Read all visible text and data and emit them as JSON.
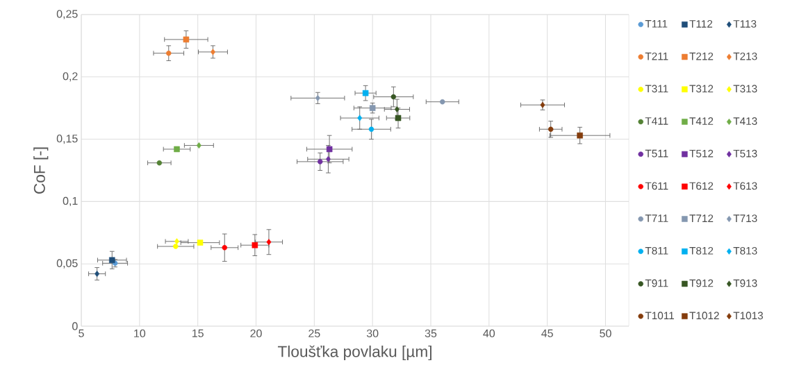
{
  "chart_data": {
    "type": "scatter",
    "xlabel": "Tloušťka povlaku [µm]",
    "ylabel": "CoF [-]",
    "xlim": [
      5,
      52
    ],
    "xticks": [
      5,
      10,
      15,
      20,
      25,
      30,
      35,
      40,
      45,
      50
    ],
    "ylim": [
      0,
      0.25
    ],
    "yticks": [
      0,
      {
        "value": 0.05,
        "label": "0,05"
      },
      {
        "value": 0.1,
        "label": "0,1"
      },
      {
        "value": 0.15,
        "label": "0,15"
      },
      {
        "value": 0.2,
        "label": "0,2"
      },
      {
        "value": 0.25,
        "label": "0,25"
      }
    ],
    "grid": true,
    "legend": "right",
    "series": [
      {
        "name": "T111",
        "color": "#5b9bd5",
        "marker": "circle",
        "x": [
          7.9
        ],
        "values": [
          0.0505
        ],
        "xerrors": [
          1.07
        ],
        "errors": [
          0.003
        ]
      },
      {
        "name": "T112",
        "color": "#1f4e79",
        "marker": "square",
        "x": [
          7.64
        ],
        "values": [
          0.053
        ],
        "xerrors": [
          1.24
        ],
        "errors": [
          0.007
        ]
      },
      {
        "name": "T113",
        "color": "#1f4e79",
        "marker": "diamond",
        "x": [
          6.35
        ],
        "values": [
          0.042
        ],
        "xerrors": [
          0.72
        ],
        "errors": [
          0.005
        ]
      },
      {
        "name": "T211",
        "color": "#ed7d31",
        "marker": "circle",
        "x": [
          12.5
        ],
        "values": [
          0.219
        ],
        "xerrors": [
          1.3
        ],
        "errors": [
          0.006
        ]
      },
      {
        "name": "T212",
        "color": "#ed7d31",
        "marker": "square",
        "x": [
          14.0
        ],
        "values": [
          0.23
        ],
        "xerrors": [
          1.86
        ],
        "errors": [
          0.007
        ]
      },
      {
        "name": "T213",
        "color": "#ed7d31",
        "marker": "diamond",
        "x": [
          16.3
        ],
        "values": [
          0.22
        ],
        "xerrors": [
          1.25
        ],
        "errors": [
          0.005
        ]
      },
      {
        "name": "T311",
        "color": "#ffff00",
        "marker": "circle",
        "x": [
          13.1
        ],
        "values": [
          0.064
        ],
        "xerrors": [
          1.56
        ]
      },
      {
        "name": "T312",
        "color": "#ffff00",
        "marker": "square",
        "x": [
          15.2
        ],
        "values": [
          0.067
        ],
        "xerrors": [
          1.66
        ]
      },
      {
        "name": "T313",
        "color": "#ffff00",
        "marker": "diamond",
        "x": [
          13.2
        ],
        "values": [
          0.068
        ],
        "xerrors": [
          0.98
        ]
      },
      {
        "name": "T411",
        "color": "#548235",
        "marker": "circle",
        "x": [
          11.7
        ],
        "values": [
          0.131
        ],
        "xerrors": [
          1.0
        ]
      },
      {
        "name": "T412",
        "color": "#70ad47",
        "marker": "square",
        "x": [
          13.2
        ],
        "values": [
          0.142
        ],
        "xerrors": [
          1.15
        ]
      },
      {
        "name": "T413",
        "color": "#70ad47",
        "marker": "diamond",
        "x": [
          15.1
        ],
        "values": [
          0.145
        ],
        "xerrors": [
          1.25
        ]
      },
      {
        "name": "T511",
        "color": "#7030a0",
        "marker": "circle",
        "x": [
          25.5
        ],
        "values": [
          0.132
        ],
        "xerrors": [
          1.98
        ],
        "errors": [
          0.007
        ]
      },
      {
        "name": "T512",
        "color": "#7030a0",
        "marker": "square",
        "x": [
          26.3
        ],
        "values": [
          0.142
        ],
        "xerrors": [
          1.95
        ],
        "errors": [
          0.011
        ]
      },
      {
        "name": "T513",
        "color": "#7030a0",
        "marker": "diamond",
        "x": [
          26.2
        ],
        "values": [
          0.134
        ],
        "xerrors": [
          1.77
        ],
        "errors": [
          0.011
        ]
      },
      {
        "name": "T611",
        "color": "#ff0000",
        "marker": "circle",
        "x": [
          17.3
        ],
        "values": [
          0.063
        ],
        "xerrors": [
          1.16
        ],
        "errors": [
          0.011
        ]
      },
      {
        "name": "T612",
        "color": "#ff0000",
        "marker": "square",
        "x": [
          19.9
        ],
        "values": [
          0.065
        ],
        "xerrors": [
          1.2
        ],
        "errors": [
          0.0085
        ]
      },
      {
        "name": "T613",
        "color": "#ff0000",
        "marker": "diamond",
        "x": [
          21.1
        ],
        "values": [
          0.0675
        ],
        "xerrors": [
          1.17
        ],
        "errors": [
          0.01
        ]
      },
      {
        "name": "T711",
        "color": "#8497b0",
        "marker": "circle",
        "x": [
          36.0
        ],
        "values": [
          0.18
        ],
        "xerrors": [
          1.4
        ]
      },
      {
        "name": "T712",
        "color": "#8497b0",
        "marker": "square",
        "x": [
          30.0
        ],
        "values": [
          0.175
        ],
        "xerrors": [
          1.6
        ],
        "errors": [
          0.004
        ]
      },
      {
        "name": "T713",
        "color": "#8497b0",
        "marker": "diamond",
        "x": [
          25.3
        ],
        "values": [
          0.183
        ],
        "xerrors": [
          2.3
        ],
        "errors": [
          0.0045
        ]
      },
      {
        "name": "T811",
        "color": "#00b0f0",
        "marker": "circle",
        "x": [
          29.9
        ],
        "values": [
          0.158
        ],
        "xerrors": [
          1.66
        ],
        "errors": [
          0.008
        ]
      },
      {
        "name": "T812",
        "color": "#00b0f0",
        "marker": "square",
        "x": [
          29.4
        ],
        "values": [
          0.187
        ],
        "xerrors": [
          0.9
        ],
        "errors": [
          0.006
        ]
      },
      {
        "name": "T813",
        "color": "#00b0f0",
        "marker": "diamond",
        "x": [
          28.9
        ],
        "values": [
          0.167
        ],
        "xerrors": [
          1.65
        ],
        "errors": [
          0.009
        ]
      },
      {
        "name": "T911",
        "color": "#375623",
        "marker": "circle",
        "x": [
          31.8
        ],
        "values": [
          0.184
        ],
        "xerrors": [
          1.7
        ],
        "errors": [
          0.008
        ]
      },
      {
        "name": "T912",
        "color": "#375623",
        "marker": "square",
        "x": [
          32.2
        ],
        "values": [
          0.167
        ],
        "xerrors": [
          1.0
        ],
        "errors": [
          0.008
        ]
      },
      {
        "name": "T913",
        "color": "#375623",
        "marker": "diamond",
        "x": [
          32.1
        ],
        "values": [
          0.174
        ],
        "xerrors": [
          1.08
        ],
        "errors": [
          0.008
        ]
      },
      {
        "name": "T1011",
        "color": "#843c0c",
        "marker": "circle",
        "x": [
          45.3
        ],
        "values": [
          0.158
        ],
        "xerrors": [
          0.97
        ],
        "errors": [
          0.0065
        ]
      },
      {
        "name": "T1012",
        "color": "#843c0c",
        "marker": "square",
        "x": [
          47.8
        ],
        "values": [
          0.153
        ],
        "xerrors": [
          2.58
        ],
        "errors": [
          0.0066
        ]
      },
      {
        "name": "T1013",
        "color": "#843c0c",
        "marker": "diamond",
        "x": [
          44.6
        ],
        "values": [
          0.1775
        ],
        "xerrors": [
          1.88
        ],
        "errors": [
          0.004
        ]
      }
    ]
  }
}
